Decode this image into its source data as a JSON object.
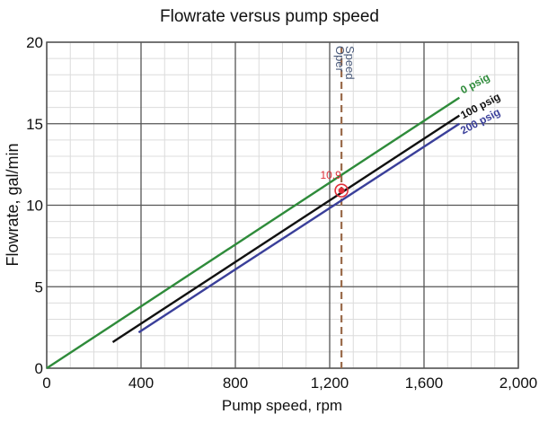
{
  "chart_data": {
    "type": "line",
    "title": "Flowrate versus pump speed",
    "xlabel": "Pump speed, rpm",
    "ylabel": "Flowrate, gal/min",
    "xlim": [
      0,
      2000
    ],
    "ylim": [
      0,
      20
    ],
    "xticks": [
      0,
      400,
      800,
      1200,
      1600,
      2000
    ],
    "xtick_labels": [
      "0",
      "400",
      "800",
      "1,200",
      "1,600",
      "2,000"
    ],
    "yticks": [
      0,
      5,
      10,
      15,
      20
    ],
    "ytick_labels": [
      "0",
      "5",
      "10",
      "15",
      "20"
    ],
    "grid": true,
    "series": [
      {
        "name": "0 psig",
        "color": "#2e8b3a",
        "x": [
          0,
          1750
        ],
        "y": [
          0,
          16.6
        ]
      },
      {
        "name": "100 psig",
        "color": "#111111",
        "x": [
          280,
          1750
        ],
        "y": [
          1.6,
          15.5
        ]
      },
      {
        "name": "200 psig",
        "color": "#3a3f9a",
        "x": [
          390,
          1750
        ],
        "y": [
          2.2,
          15.0
        ]
      }
    ],
    "annotations": {
      "oper_speed": {
        "label_top": "Oper",
        "label_bottom": "Speed",
        "x": 1250,
        "color": "#9a6a4a"
      },
      "operating_point": {
        "label": "10.9",
        "x": 1250,
        "y": 10.9,
        "color": "#e0303a"
      }
    }
  }
}
